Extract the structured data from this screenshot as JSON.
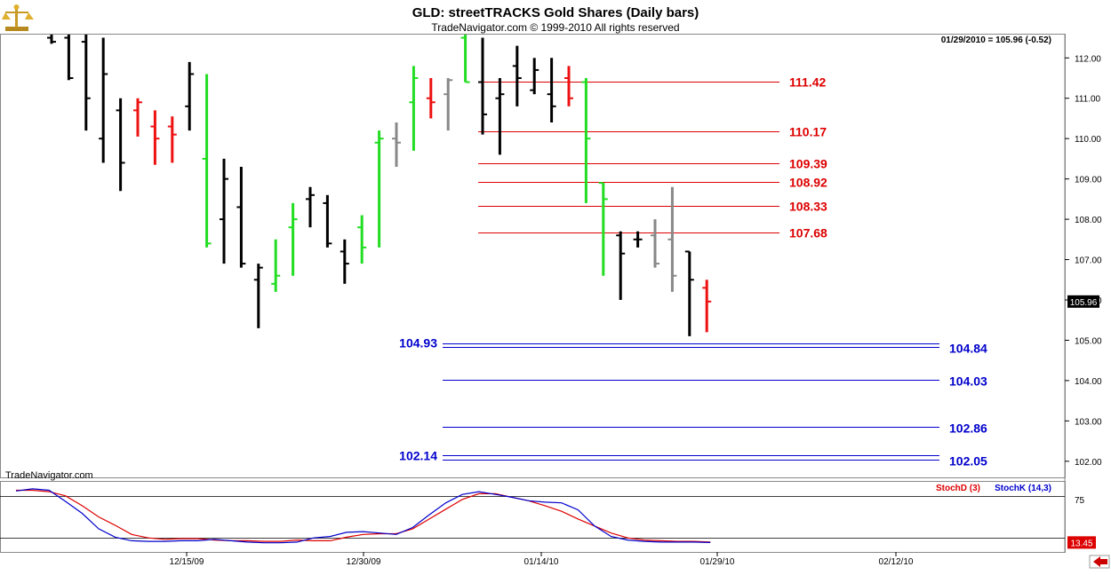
{
  "header": {
    "title": "GLD:  streetTRACKS Gold Shares  (Daily bars)",
    "subtitle": "TradeNavigator.com © 1999-2010 All rights reserved",
    "date_readout": "01/29/2010 = 105.96 (-0.52)",
    "watermark": "TradeNavigator.com"
  },
  "colors": {
    "up": "#22dd22",
    "down": "#ee1111",
    "neutral": "#000000",
    "gray": "#888888",
    "resistance": "#dd0000",
    "support": "#0000cc",
    "stoch_d": "#dd0000",
    "stoch_k": "#0000cc"
  },
  "chart_data": [
    {
      "type": "ohlc",
      "title": "GLD:  streetTRACKS Gold Shares  (Daily bars)",
      "ylim": [
        101.6,
        112.6
      ],
      "y_ticks": [
        "112.00",
        "111.00",
        "110.00",
        "109.00",
        "108.00",
        "107.00",
        "106.00",
        "105.00",
        "104.00",
        "103.00",
        "102.00"
      ],
      "x_labels": [
        "12/15/09",
        "12/30/09",
        "01/14/10",
        "01/29/10",
        "02/12/10"
      ],
      "last_value_badge": "105.96",
      "bars": [
        {
          "h": 112.6,
          "l": 112.35,
          "o": 112.5,
          "c": 112.4,
          "col": "neutral"
        },
        {
          "h": 112.6,
          "l": 111.45,
          "o": 112.5,
          "c": 111.5,
          "col": "neutral"
        },
        {
          "h": 112.6,
          "l": 110.2,
          "o": 112.4,
          "c": 111.0,
          "col": "neutral"
        },
        {
          "h": 112.5,
          "l": 109.4,
          "o": 110.0,
          "c": 111.6,
          "col": "neutral"
        },
        {
          "h": 111.0,
          "l": 108.7,
          "o": 110.7,
          "c": 109.4,
          "col": "neutral"
        },
        {
          "h": 111.0,
          "l": 110.05,
          "o": 110.7,
          "c": 110.9,
          "col": "down"
        },
        {
          "h": 110.7,
          "l": 109.35,
          "o": 110.3,
          "c": 110.0,
          "col": "down"
        },
        {
          "h": 110.55,
          "l": 109.4,
          "o": 110.3,
          "c": 110.1,
          "col": "down"
        },
        {
          "h": 111.9,
          "l": 110.2,
          "o": 110.8,
          "c": 111.6,
          "col": "neutral"
        },
        {
          "h": 111.6,
          "l": 107.3,
          "o": 109.5,
          "c": 107.4,
          "col": "up"
        },
        {
          "h": 109.5,
          "l": 106.9,
          "o": 108.0,
          "c": 109.0,
          "col": "neutral"
        },
        {
          "h": 109.3,
          "l": 106.8,
          "o": 108.3,
          "c": 106.9,
          "col": "neutral"
        },
        {
          "h": 106.9,
          "l": 105.3,
          "o": 106.5,
          "c": 106.8,
          "col": "neutral"
        },
        {
          "h": 107.5,
          "l": 106.2,
          "o": 106.4,
          "c": 106.6,
          "col": "up"
        },
        {
          "h": 108.4,
          "l": 106.6,
          "o": 107.8,
          "c": 108.0,
          "col": "up"
        },
        {
          "h": 108.8,
          "l": 107.8,
          "o": 108.5,
          "c": 108.6,
          "col": "neutral"
        },
        {
          "h": 108.6,
          "l": 107.3,
          "o": 108.4,
          "c": 107.4,
          "col": "neutral"
        },
        {
          "h": 107.5,
          "l": 106.4,
          "o": 107.2,
          "c": 106.9,
          "col": "neutral"
        },
        {
          "h": 108.1,
          "l": 106.9,
          "o": 107.8,
          "c": 107.3,
          "col": "up"
        },
        {
          "h": 110.2,
          "l": 107.3,
          "o": 109.9,
          "c": 110.0,
          "col": "up"
        },
        {
          "h": 110.4,
          "l": 109.3,
          "o": 110.0,
          "c": 109.9,
          "col": "gray"
        },
        {
          "h": 111.8,
          "l": 109.7,
          "o": 110.9,
          "c": 111.5,
          "col": "up"
        },
        {
          "h": 111.5,
          "l": 110.5,
          "o": 111.0,
          "c": 110.9,
          "col": "down"
        },
        {
          "h": 111.5,
          "l": 110.2,
          "o": 111.1,
          "c": 111.45,
          "col": "gray"
        },
        {
          "h": 112.6,
          "l": 111.4,
          "o": 112.5,
          "c": 111.4,
          "col": "up"
        },
        {
          "h": 112.5,
          "l": 110.1,
          "o": 111.4,
          "c": 110.6,
          "col": "neutral"
        },
        {
          "h": 111.5,
          "l": 109.6,
          "o": 111.0,
          "c": 111.1,
          "col": "neutral"
        },
        {
          "h": 112.3,
          "l": 110.8,
          "o": 111.8,
          "c": 111.5,
          "col": "neutral"
        },
        {
          "h": 112.0,
          "l": 111.1,
          "o": 111.2,
          "c": 111.7,
          "col": "neutral"
        },
        {
          "h": 112.0,
          "l": 110.4,
          "o": 111.1,
          "c": 110.8,
          "col": "neutral"
        },
        {
          "h": 111.8,
          "l": 110.8,
          "o": 111.5,
          "c": 111.0,
          "col": "down"
        },
        {
          "h": 111.5,
          "l": 108.4,
          "o": 111.4,
          "c": 110.0,
          "col": "up"
        },
        {
          "h": 108.9,
          "l": 106.6,
          "o": 108.9,
          "c": 108.5,
          "col": "up"
        },
        {
          "h": 107.7,
          "l": 106.0,
          "o": 107.6,
          "c": 107.15,
          "col": "neutral"
        },
        {
          "h": 107.7,
          "l": 107.3,
          "o": 107.5,
          "c": 107.5,
          "col": "neutral"
        },
        {
          "h": 108.0,
          "l": 106.8,
          "o": 107.6,
          "c": 106.9,
          "col": "gray"
        },
        {
          "h": 108.8,
          "l": 106.2,
          "o": 107.5,
          "c": 106.6,
          "col": "gray"
        },
        {
          "h": 107.2,
          "l": 105.1,
          "o": 107.2,
          "c": 106.5,
          "col": "neutral"
        },
        {
          "h": 106.5,
          "l": 105.2,
          "o": 106.3,
          "c": 105.96,
          "col": "down"
        }
      ],
      "resistance_levels": [
        "111.42",
        "110.17",
        "109.39",
        "108.92",
        "108.33",
        "107.68"
      ],
      "support_levels_left": [
        "104.93",
        "102.14"
      ],
      "support_levels_right": [
        "104.84",
        "104.03",
        "102.86",
        "102.05"
      ]
    },
    {
      "type": "line",
      "legend": [
        "StochD (3)",
        "StochK (14,3)"
      ],
      "ylim": [
        0,
        100
      ],
      "y_ticks": [
        "75"
      ],
      "ref_lines": [
        80,
        20
      ],
      "last_value_badge": "13.45",
      "series": [
        {
          "name": "StochD (3)",
          "color": "stoch_d",
          "values": [
            88,
            88,
            86,
            80,
            66,
            50,
            38,
            25,
            20,
            18,
            19,
            19,
            17,
            16,
            16,
            15,
            15,
            17,
            16,
            16,
            21,
            25,
            26,
            26,
            33,
            47,
            61,
            75,
            83,
            83,
            78,
            73,
            66,
            58,
            47,
            37,
            27,
            20,
            17,
            16,
            15,
            15,
            14
          ]
        },
        {
          "name": "StochK (14,3)",
          "color": "stoch_k",
          "values": [
            87,
            90,
            88,
            72,
            55,
            33,
            21,
            16,
            15,
            15,
            16,
            16,
            18,
            16,
            14,
            13,
            13,
            14,
            20,
            22,
            28,
            29,
            27,
            25,
            35,
            53,
            70,
            82,
            86,
            82,
            78,
            73,
            71,
            70,
            60,
            37,
            22,
            17,
            15,
            14,
            14,
            14,
            13.45
          ]
        }
      ],
      "x_labels": [
        "12/15/09",
        "12/30/09",
        "01/14/10",
        "01/29/10",
        "02/12/10"
      ]
    }
  ]
}
